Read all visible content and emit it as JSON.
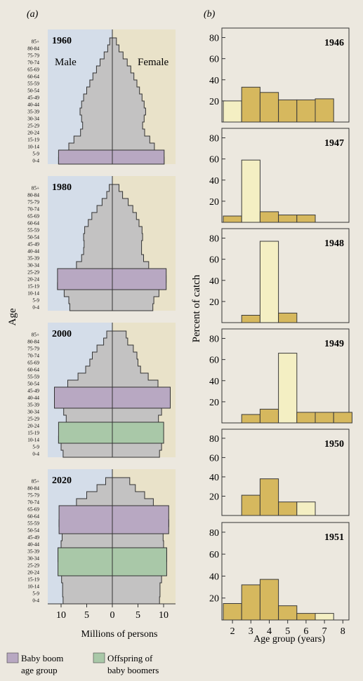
{
  "panel_labels": {
    "a": "(a)",
    "b": "(b)"
  },
  "chart_data": [
    {
      "type": "bar",
      "subtype": "population-pyramid",
      "panel": "(a)",
      "title": "",
      "ylabel": "Age",
      "xlabel": "Millions of persons",
      "sex_labels": {
        "male": "Male",
        "female": "Female"
      },
      "xlim": [
        -11,
        11
      ],
      "x_ticks": [
        10,
        5,
        0,
        5,
        10
      ],
      "age_groups": [
        "0-4",
        "5-9",
        "10-14",
        "15-19",
        "20-24",
        "25-29",
        "30-34",
        "35-39",
        "40-44",
        "45-49",
        "50-54",
        "55-59",
        "60-64",
        "65-69",
        "70-74",
        "75-79",
        "80-84",
        "85+"
      ],
      "legend": [
        {
          "label_line1": "Baby boom",
          "label_line2": "age group",
          "color": "#b8a8c2"
        },
        {
          "label_line1": "Offspring of",
          "label_line2": "baby boomers",
          "color": "#a9c8a8"
        }
      ],
      "pyramids": [
        {
          "year": "1960",
          "male": [
            10.5,
            9.5,
            8.5,
            7.5,
            6.2,
            5.8,
            6.0,
            6.3,
            6.0,
            5.6,
            5.0,
            4.4,
            3.8,
            3.1,
            2.4,
            1.6,
            0.9,
            0.5
          ],
          "female": [
            10.1,
            9.2,
            8.2,
            7.3,
            6.3,
            5.9,
            6.2,
            6.5,
            6.2,
            5.8,
            5.3,
            4.8,
            4.2,
            3.6,
            2.9,
            2.1,
            1.3,
            0.8
          ],
          "highlight_ranges": [
            [
              0,
              1,
              "baby_boom"
            ]
          ]
        },
        {
          "year": "1980",
          "male": [
            8.3,
            8.5,
            9.4,
            10.7,
            10.6,
            9.6,
            7.0,
            6.0,
            5.6,
            5.5,
            5.6,
            5.4,
            4.7,
            4.0,
            3.0,
            2.0,
            1.1,
            0.6
          ],
          "female": [
            7.9,
            8.1,
            9.1,
            10.3,
            10.5,
            10.2,
            7.1,
            6.1,
            5.7,
            5.7,
            5.9,
            5.8,
            5.2,
            4.7,
            4.0,
            3.1,
            2.0,
            1.3
          ],
          "highlight_ranges": [
            [
              3,
              5,
              "baby_boom"
            ]
          ]
        },
        {
          "year": "2000",
          "male": [
            9.6,
            10.0,
            10.5,
            10.4,
            9.6,
            9.0,
            9.5,
            10.7,
            11.3,
            10.1,
            8.7,
            6.7,
            5.2,
            4.4,
            3.9,
            3.0,
            1.7,
            1.1
          ],
          "female": [
            9.2,
            9.6,
            10.0,
            9.9,
            9.4,
            9.0,
            9.6,
            10.8,
            11.3,
            10.2,
            8.9,
            7.0,
            5.5,
            5.0,
            4.8,
            4.1,
            3.0,
            2.7
          ],
          "highlight_ranges": [
            [
              2,
              4,
              "offspring"
            ],
            [
              7,
              9,
              "baby_boom"
            ]
          ]
        },
        {
          "year": "2020",
          "male": [
            9.6,
            9.7,
            9.7,
            9.9,
            10.1,
            10.4,
            10.6,
            10.6,
            10.0,
            9.8,
            9.8,
            10.4,
            10.0,
            9.0,
            7.0,
            5.0,
            3.0,
            1.3
          ],
          "female": [
            9.2,
            9.3,
            9.3,
            9.6,
            10.0,
            10.4,
            10.6,
            10.6,
            10.0,
            9.9,
            10.3,
            11.0,
            10.6,
            9.8,
            8.0,
            6.3,
            4.5,
            3.4
          ],
          "highlight_ranges": [
            [
              4,
              7,
              "offspring"
            ],
            [
              10,
              13,
              "baby_boom"
            ]
          ]
        }
      ]
    },
    {
      "type": "bar",
      "subtype": "histogram-stack",
      "panel": "(b)",
      "title": "",
      "ylabel": "Percent of catch",
      "xlabel": "Age group (years)",
      "x_ticks": [
        2,
        3,
        4,
        5,
        6,
        7,
        8
      ],
      "y_ticks": [
        20,
        40,
        60,
        80
      ],
      "ylim": [
        0,
        85
      ],
      "series": [
        {
          "name": "1946",
          "bars": [
            {
              "age": 2,
              "value": 20,
              "cohort": true
            },
            {
              "age": 3,
              "value": 33
            },
            {
              "age": 4,
              "value": 28
            },
            {
              "age": 5,
              "value": 21
            },
            {
              "age": 6,
              "value": 21
            },
            {
              "age": 7,
              "value": 22
            }
          ]
        },
        {
          "name": "1947",
          "bars": [
            {
              "age": 2,
              "value": 6
            },
            {
              "age": 3,
              "value": 59,
              "cohort": true
            },
            {
              "age": 4,
              "value": 10
            },
            {
              "age": 5,
              "value": 7
            },
            {
              "age": 6,
              "value": 7
            }
          ]
        },
        {
          "name": "1948",
          "bars": [
            {
              "age": 3,
              "value": 7
            },
            {
              "age": 4,
              "value": 77,
              "cohort": true
            },
            {
              "age": 5,
              "value": 9
            }
          ]
        },
        {
          "name": "1949",
          "bars": [
            {
              "age": 3,
              "value": 8
            },
            {
              "age": 4,
              "value": 13
            },
            {
              "age": 5,
              "value": 66,
              "cohort": true
            },
            {
              "age": 6,
              "value": 10
            },
            {
              "age": 7,
              "value": 10
            },
            {
              "age": 8,
              "value": 10
            }
          ]
        },
        {
          "name": "1950",
          "bars": [
            {
              "age": 3,
              "value": 21
            },
            {
              "age": 4,
              "value": 38
            },
            {
              "age": 5,
              "value": 14
            },
            {
              "age": 6,
              "value": 14,
              "cohort": true
            }
          ]
        },
        {
          "name": "1951",
          "bars": [
            {
              "age": 2,
              "value": 15
            },
            {
              "age": 3,
              "value": 32
            },
            {
              "age": 4,
              "value": 37
            },
            {
              "age": 5,
              "value": 13
            },
            {
              "age": 6,
              "value": 6
            },
            {
              "age": 7,
              "value": 6,
              "cohort": true
            }
          ]
        }
      ],
      "colors": {
        "bar": "#d6b85e",
        "cohort_bar": "#f4efc3"
      }
    }
  ]
}
